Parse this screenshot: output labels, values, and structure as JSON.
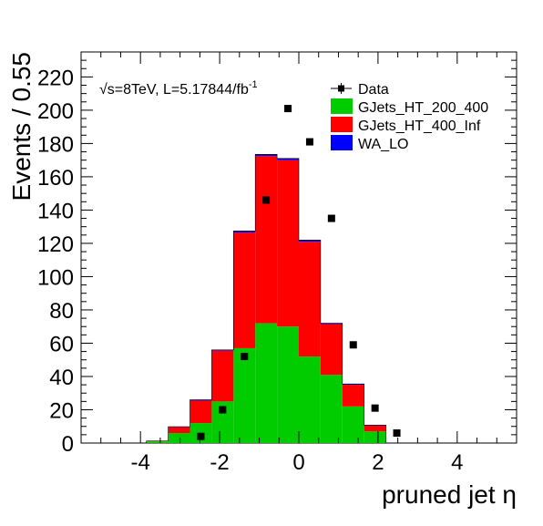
{
  "chart_data": {
    "type": "bar",
    "stacked": true,
    "xlabel": "pruned jet η",
    "ylabel": "Events / 0.55",
    "xlim": [
      -5.5,
      5.5
    ],
    "ylim": [
      0,
      235
    ],
    "xticks": [
      -4,
      -2,
      0,
      2,
      4
    ],
    "xtick_labels": [
      "-4",
      "-2",
      "0",
      "2",
      "4"
    ],
    "yticks": [
      0,
      20,
      40,
      60,
      80,
      100,
      120,
      140,
      160,
      180,
      200,
      220
    ],
    "ytick_labels": [
      "0",
      "20",
      "40",
      "60",
      "80",
      "100",
      "120",
      "140",
      "160",
      "180",
      "200",
      "220"
    ],
    "annotation": {
      "sqrt": "√",
      "main": "s=8TeV, L=5.17844/fb",
      "sup": "-1"
    },
    "legend_position": "top-right",
    "bin_edges": [
      -5.5,
      -4.95,
      -4.4,
      -3.85,
      -3.3,
      -2.75,
      -2.2,
      -1.65,
      -1.1,
      -0.55,
      0,
      0.55,
      1.1,
      1.65,
      2.2,
      2.75,
      3.3,
      3.85,
      4.4,
      4.95,
      5.5
    ],
    "series": [
      {
        "name": "GJets_HT_200_400",
        "color": "#00cc00",
        "values": [
          0,
          0,
          0,
          1,
          6,
          12,
          25,
          57,
          72,
          70,
          52,
          41,
          22,
          7,
          0,
          0,
          0,
          0,
          0,
          0
        ]
      },
      {
        "name": "GJets_HT_400_Inf",
        "color": "#ff0000",
        "values": [
          0,
          0,
          0,
          0.3,
          3.5,
          13.5,
          30.5,
          69.5,
          100.5,
          100,
          69,
          30.5,
          13,
          3.5,
          0,
          0,
          0,
          0,
          0,
          0
        ]
      },
      {
        "name": "WA_LO",
        "color": "#0000ff",
        "values": [
          0,
          0,
          0,
          0,
          0.3,
          0.5,
          0.5,
          1,
          1,
          1,
          1,
          0.5,
          0.5,
          0.3,
          0,
          0,
          0,
          0,
          0,
          0
        ]
      }
    ],
    "data_points": {
      "name": "Data",
      "x": [
        -2.475,
        -1.925,
        -1.375,
        -0.825,
        -0.275,
        0.275,
        0.825,
        1.375,
        1.925,
        2.475
      ],
      "y": [
        4,
        20,
        52,
        146,
        201,
        181,
        135,
        59,
        21,
        6
      ]
    }
  }
}
